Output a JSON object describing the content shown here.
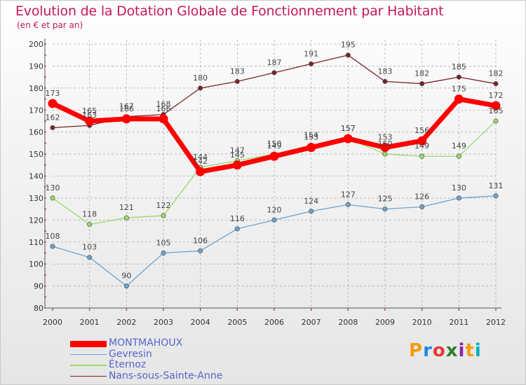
{
  "title": "Evolution de la Dotation Globale de Fonctionnement par Habitant",
  "subtitle": "(en € et par an)",
  "logo": {
    "text": "Proxiti",
    "colors": [
      "#f39c12",
      "#1e88e5",
      "#e53935",
      "#2e7d32",
      "#8e24aa",
      "#f39c12",
      "#00acc1"
    ]
  },
  "chart_data": {
    "type": "line",
    "title": "Evolution de la Dotation Globale de Fonctionnement par Habitant",
    "subtitle": "(en € et par an)",
    "xlabel": "",
    "ylabel": "",
    "x": [
      "2000",
      "2001",
      "2002",
      "2003",
      "2004",
      "2005",
      "2006",
      "2007",
      "2008",
      "2009",
      "2010",
      "2011",
      "2012"
    ],
    "ylim": [
      80,
      200
    ],
    "yticks": [
      80,
      90,
      100,
      110,
      120,
      130,
      140,
      150,
      160,
      170,
      180,
      190,
      200
    ],
    "grid": true,
    "legend": "bottom-left",
    "series": [
      {
        "name": "Nans-sous-Sainte-Anne",
        "color": "#7b2226",
        "values": [
          162,
          163,
          167,
          168,
          180,
          183,
          187,
          191,
          195,
          183,
          182,
          185,
          182
        ]
      },
      {
        "name": "Éternoz",
        "color": "#9ada6a",
        "values": [
          130,
          118,
          121,
          122,
          144,
          147,
          150,
          154,
          157,
          150,
          149,
          149,
          165
        ]
      },
      {
        "name": "Gevresin",
        "color": "#6fa2cc",
        "values": [
          108,
          103,
          90,
          105,
          106,
          116,
          120,
          124,
          127,
          125,
          126,
          130,
          131
        ]
      },
      {
        "name": "MONTMAHOUX",
        "color": "#ff0000",
        "values": [
          173,
          165,
          166,
          166,
          142,
          145,
          149,
          153,
          157,
          153,
          156,
          175,
          172
        ]
      }
    ]
  },
  "legend_order": [
    "MONTMAHOUX",
    "Gevresin",
    "Éternoz",
    "Nans-sous-Sainte-Anne"
  ]
}
